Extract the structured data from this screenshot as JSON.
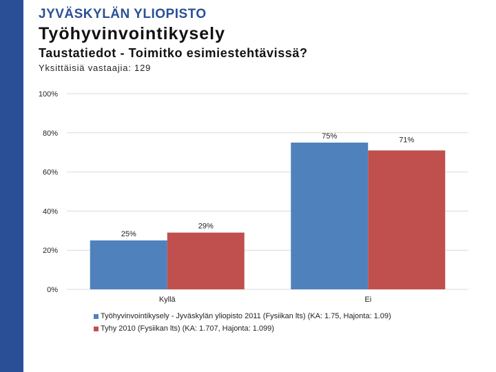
{
  "header": {
    "logo_text": "JYVÄSKYLÄN YLIOPISTO",
    "title": "Työhyvinvointikysely",
    "subtitle": "Taustatiedot - Toimitko esimiestehtävissä?",
    "respondents": "Yksittäisiä vastaajia: 129"
  },
  "colors": {
    "brand": "#2a4f97",
    "series_2011": "#4f81bd",
    "series_2010": "#c0504d",
    "grid": "#d9d9d9"
  },
  "chart_data": {
    "type": "bar",
    "categories": [
      "Kyllä",
      "Ei"
    ],
    "series": [
      {
        "name": "Työhyvinvointikysely - Jyväskylän yliopisto 2011 (Fysiikan lts) (KA: 1.75, Hajonta: 1.09)",
        "values": [
          25,
          75
        ],
        "labels": [
          "25%",
          "75%"
        ],
        "color": "#4f81bd"
      },
      {
        "name": "Tyhy 2010 (Fysiikan lts) (KA: 1.707, Hajonta: 1.099)",
        "values": [
          29,
          71
        ],
        "labels": [
          "29%",
          "71%"
        ],
        "color": "#c0504d"
      }
    ],
    "yticks": [
      "0%",
      "20%",
      "40%",
      "60%",
      "80%",
      "100%"
    ],
    "ylim": [
      0,
      100
    ],
    "grid": true,
    "legend_position": "bottom-left"
  }
}
